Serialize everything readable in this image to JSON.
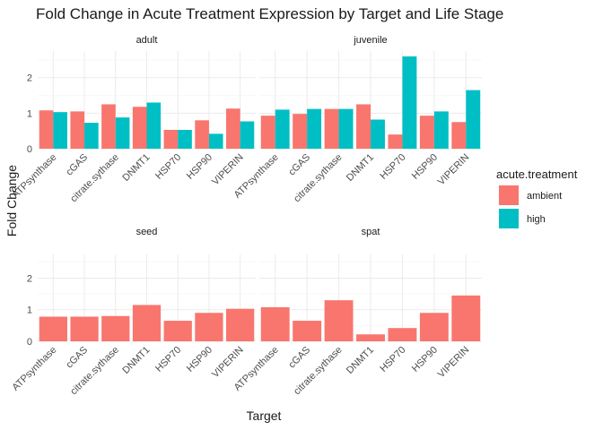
{
  "chart_data": {
    "type": "bar",
    "title": "Fold Change in Acute Treatment Expression by Target and Life Stage",
    "xlabel": "Target",
    "ylabel": "Fold Change",
    "ylim": [
      0,
      2.75
    ],
    "yticks": [
      "0",
      "1",
      "2"
    ],
    "categories": [
      "ATPsynthase",
      "cGAS",
      "citrate.sythase",
      "DNMT1",
      "HSP70",
      "HSP90",
      "VIPERIN"
    ],
    "legend": {
      "title": "acute.treatment",
      "placement": "right",
      "entries": [
        {
          "label": "ambient",
          "color": "#F8766D"
        },
        {
          "label": "high",
          "color": "#00BFC4"
        }
      ]
    },
    "panels": [
      {
        "name": "adult",
        "series": [
          {
            "name": "ambient",
            "color": "#F8766D",
            "values": [
              1.08,
              1.05,
              1.25,
              1.18,
              0.53,
              0.8,
              1.13
            ]
          },
          {
            "name": "high",
            "color": "#00BFC4",
            "values": [
              1.03,
              0.73,
              0.88,
              1.3,
              0.53,
              0.42,
              0.77
            ]
          }
        ]
      },
      {
        "name": "juvenile",
        "series": [
          {
            "name": "ambient",
            "color": "#F8766D",
            "values": [
              0.93,
              0.98,
              1.12,
              1.25,
              0.4,
              0.93,
              0.75
            ]
          },
          {
            "name": "high",
            "color": "#00BFC4",
            "values": [
              1.1,
              1.12,
              1.12,
              0.82,
              2.6,
              1.05,
              1.65
            ]
          }
        ]
      },
      {
        "name": "seed",
        "series": [
          {
            "name": "ambient",
            "color": "#F8766D",
            "values": [
              0.78,
              0.78,
              0.8,
              1.15,
              0.65,
              0.9,
              1.03
            ]
          }
        ]
      },
      {
        "name": "spat",
        "series": [
          {
            "name": "ambient",
            "color": "#F8766D",
            "values": [
              1.08,
              0.65,
              1.3,
              0.22,
              0.42,
              0.9,
              1.45
            ]
          }
        ]
      }
    ]
  }
}
